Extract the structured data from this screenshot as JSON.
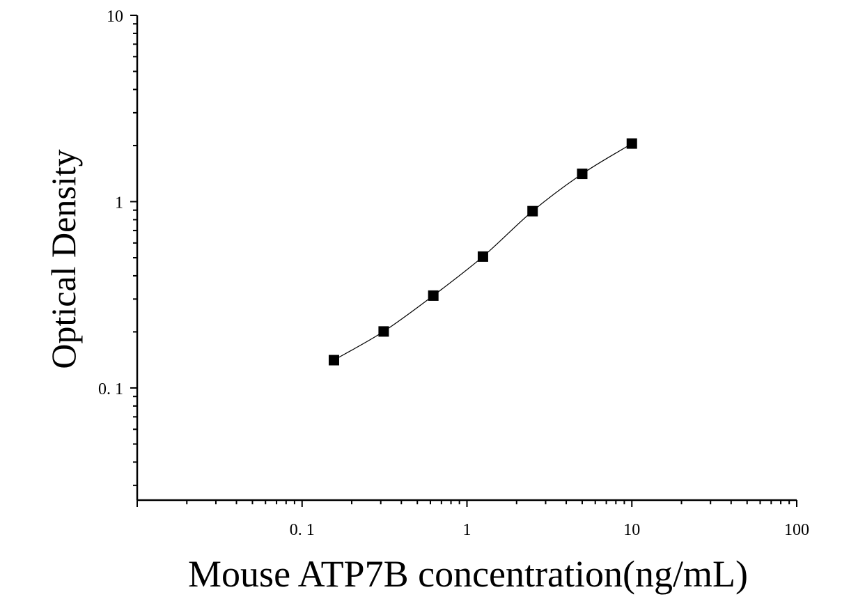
{
  "chart_data": {
    "type": "scatter",
    "xlabel": "Mouse ATP7B concentration(ng/mL)",
    "ylabel": "Optical Density",
    "x_scale": "log",
    "y_scale": "log",
    "xlim": [
      0.01,
      100
    ],
    "ylim": [
      0.025,
      10
    ],
    "x_ticks": [
      {
        "value": 0.1,
        "label": "0. 1"
      },
      {
        "value": 1,
        "label": "1"
      },
      {
        "value": 10,
        "label": "10"
      },
      {
        "value": 100,
        "label": "100"
      }
    ],
    "y_ticks": [
      {
        "value": 0.1,
        "label": "0. 1"
      },
      {
        "value": 1,
        "label": "1"
      },
      {
        "value": 10,
        "label": "10"
      }
    ],
    "grid": false,
    "series": [
      {
        "marker": "square",
        "color": "#000000",
        "x": [
          0.156,
          0.3125,
          0.625,
          1.25,
          2.5,
          5,
          10
        ],
        "y": [
          0.141,
          0.201,
          0.313,
          0.507,
          0.889,
          1.41,
          2.05
        ]
      }
    ],
    "fit_curve": true
  }
}
